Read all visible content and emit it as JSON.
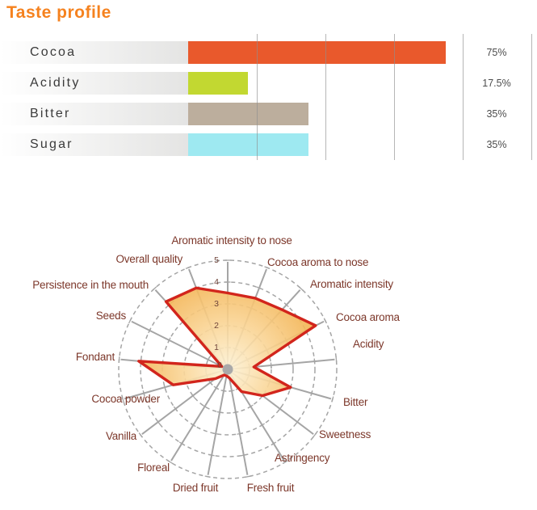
{
  "page": {
    "title": "Taste profile",
    "background": "#ffffff"
  },
  "colors": {
    "title": "#f5821f",
    "bar_label_text": "#3b3b3b",
    "percent_text": "#4c4c4c",
    "gridline": "#8f8f8f",
    "row_gradient_start": "#ffffff",
    "row_gradient_end": "#e4e4e3",
    "radar_grid": "#a5a5a5",
    "radar_label_text": "#7c372a",
    "radar_scale_text": "#6e4339",
    "polygon_stroke": "#d2251c",
    "polygon_fill_inner": "#fdf3d8",
    "polygon_fill_mid": "#fad698",
    "polygon_fill_outer": "#f0a83c",
    "center_dot": "#a9a9a9"
  },
  "chart_data": [
    {
      "type": "bar",
      "orientation": "horizontal",
      "title": "Taste profile",
      "categories": [
        "Cocoa",
        "Acidity",
        "Bitter",
        "Sugar"
      ],
      "values": [
        75,
        17.5,
        35,
        35
      ],
      "value_labels": [
        "75%",
        "17.5%",
        "35%",
        "35%"
      ],
      "bar_colors": [
        "#e9592c",
        "#c2d831",
        "#bcae9d",
        "#9ee9f1"
      ],
      "xlim": [
        0,
        100
      ],
      "unit": "%",
      "gridlines_pct": [
        20,
        40,
        60,
        80,
        100
      ],
      "grid": true,
      "legend": "none"
    },
    {
      "type": "radar",
      "axes": [
        "Aromatic intensity to nose",
        "Cocoa aroma to nose",
        "Aromatic intensity",
        "Cocoa aroma",
        "Acidity",
        "Bitter",
        "Sweetness",
        "Astringency",
        "Fresh fruit",
        "Dried fruit",
        "Floreal",
        "Vanilla",
        "Cocoa powder",
        "Fondant",
        "Seeds",
        "Persistence in the mouth",
        "Overall quality"
      ],
      "values": [
        3.5,
        3.5,
        3.7,
        4.5,
        1.2,
        3.0,
        2.0,
        1.2,
        0.4,
        0.3,
        0.3,
        0.7,
        2.6,
        4.1,
        0.3,
        4.2,
        4.0
      ],
      "scale": {
        "min": 0,
        "max": 5,
        "step": 1,
        "tick_labels": [
          "0",
          "1",
          "2",
          "3",
          "4",
          "5"
        ]
      },
      "rings": 5,
      "grid_style": "dashed",
      "legend": "none"
    }
  ]
}
